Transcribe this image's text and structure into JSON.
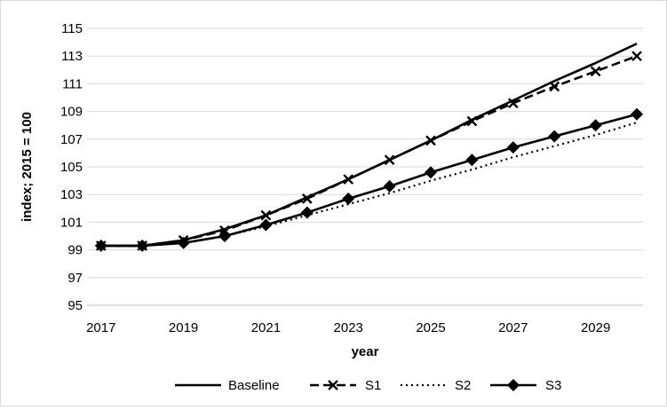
{
  "chart_data": {
    "type": "line",
    "xlabel": "year",
    "ylabel": "index; 2015 = 100",
    "xlim": [
      2017,
      2030
    ],
    "ylim": [
      95,
      115
    ],
    "x": [
      2017,
      2018,
      2019,
      2020,
      2021,
      2022,
      2023,
      2024,
      2025,
      2026,
      2027,
      2028,
      2029,
      2030
    ],
    "x_tick_labels": [
      "2017",
      "2019",
      "2021",
      "2023",
      "2025",
      "2027",
      "2029"
    ],
    "y_tick_labels": [
      "95",
      "97",
      "99",
      "101",
      "103",
      "105",
      "107",
      "109",
      "111",
      "113",
      "115"
    ],
    "grid": "horizontal",
    "legend_position": "bottom",
    "series": [
      {
        "name": "Baseline",
        "style": "solid",
        "marker": "none",
        "color": "#000000",
        "values": [
          99.3,
          99.3,
          99.7,
          100.5,
          101.5,
          102.8,
          104.1,
          105.5,
          106.9,
          108.4,
          109.8,
          111.2,
          112.5,
          113.9
        ]
      },
      {
        "name": "S1",
        "style": "dashed",
        "marker": "x",
        "color": "#000000",
        "values": [
          99.3,
          99.3,
          99.7,
          100.4,
          101.5,
          102.7,
          104.1,
          105.5,
          106.9,
          108.3,
          109.6,
          110.8,
          111.9,
          113.0
        ]
      },
      {
        "name": "S2",
        "style": "dotted",
        "marker": "none",
        "color": "#000000",
        "values": [
          99.3,
          99.3,
          99.5,
          100.0,
          100.7,
          101.5,
          102.3,
          103.1,
          104.0,
          104.8,
          105.7,
          106.5,
          107.3,
          108.2
        ]
      },
      {
        "name": "S3",
        "style": "solid",
        "marker": "diamond",
        "color": "#000000",
        "values": [
          99.3,
          99.3,
          99.5,
          100.0,
          100.8,
          101.7,
          102.7,
          103.6,
          104.6,
          105.5,
          106.4,
          107.2,
          108.0,
          108.8
        ]
      }
    ]
  }
}
